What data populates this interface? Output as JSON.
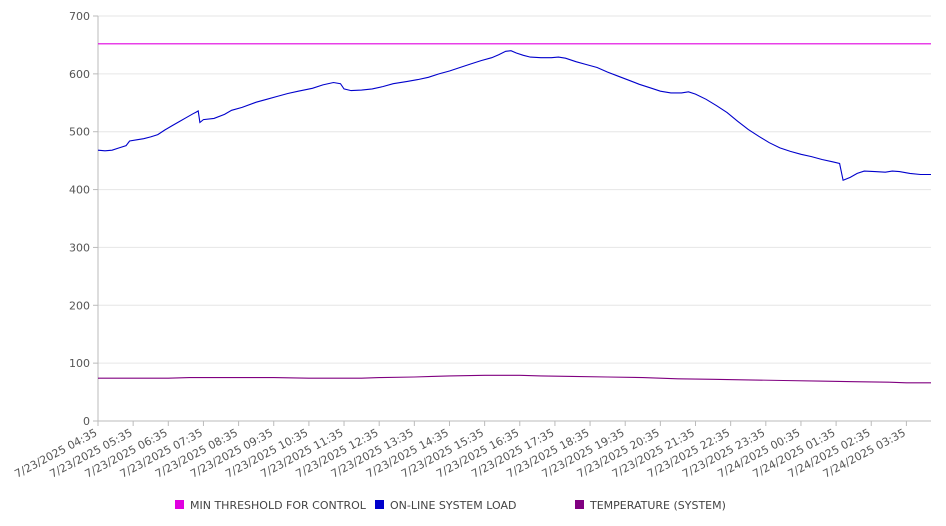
{
  "chart_data": {
    "type": "line",
    "title": "",
    "xlabel": "",
    "ylabel": "",
    "ylim": [
      0,
      700
    ],
    "yticks": [
      0,
      100,
      200,
      300,
      400,
      500,
      600,
      700
    ],
    "grid": "horizontal",
    "legend_position": "bottom",
    "categories": [
      "7/23/2025 04:35",
      "7/23/2025 05:35",
      "7/23/2025 06:35",
      "7/23/2025 07:35",
      "7/23/2025 08:35",
      "7/23/2025 09:35",
      "7/23/2025 10:35",
      "7/23/2025 11:35",
      "7/23/2025 12:35",
      "7/23/2025 13:35",
      "7/23/2025 14:35",
      "7/23/2025 15:35",
      "7/23/2025 16:35",
      "7/23/2025 17:35",
      "7/23/2025 18:35",
      "7/23/2025 19:35",
      "7/23/2025 20:35",
      "7/23/2025 21:35",
      "7/23/2025 22:35",
      "7/23/2025 23:35",
      "7/24/2025 00:35",
      "7/24/2025 01:35",
      "7/24/2025 02:35",
      "7/24/2025 03:35"
    ],
    "series": [
      {
        "name": "MIN THRESHOLD FOR CONTROL",
        "color": "#e000e0",
        "points": [
          [
            0,
            652
          ],
          [
            23.7,
            652
          ]
        ]
      },
      {
        "name": "ON-LINE SYSTEM LOAD",
        "color": "#0000cc",
        "points": [
          [
            0,
            468
          ],
          [
            0.2,
            467
          ],
          [
            0.4,
            468
          ],
          [
            0.6,
            472
          ],
          [
            0.8,
            476
          ],
          [
            0.9,
            484
          ],
          [
            1.1,
            486
          ],
          [
            1.3,
            488
          ],
          [
            1.5,
            491
          ],
          [
            1.7,
            495
          ],
          [
            1.9,
            503
          ],
          [
            2.1,
            510
          ],
          [
            2.3,
            517
          ],
          [
            2.5,
            524
          ],
          [
            2.7,
            531
          ],
          [
            2.8,
            534
          ],
          [
            2.85,
            536
          ],
          [
            2.9,
            516
          ],
          [
            3.0,
            521
          ],
          [
            3.3,
            523
          ],
          [
            3.6,
            530
          ],
          [
            3.8,
            537
          ],
          [
            4.1,
            542
          ],
          [
            4.5,
            551
          ],
          [
            4.8,
            556
          ],
          [
            5.1,
            561
          ],
          [
            5.4,
            566
          ],
          [
            5.7,
            570
          ],
          [
            6.1,
            575
          ],
          [
            6.4,
            581
          ],
          [
            6.7,
            585
          ],
          [
            6.9,
            583
          ],
          [
            7.0,
            574
          ],
          [
            7.2,
            571
          ],
          [
            7.5,
            572
          ],
          [
            7.8,
            574
          ],
          [
            8.1,
            578
          ],
          [
            8.4,
            583
          ],
          [
            8.8,
            587
          ],
          [
            9.1,
            590
          ],
          [
            9.4,
            594
          ],
          [
            9.7,
            600
          ],
          [
            10.0,
            605
          ],
          [
            10.3,
            611
          ],
          [
            10.6,
            617
          ],
          [
            10.9,
            623
          ],
          [
            11.2,
            628
          ],
          [
            11.4,
            633
          ],
          [
            11.6,
            639
          ],
          [
            11.75,
            640
          ],
          [
            11.9,
            636
          ],
          [
            12.1,
            632
          ],
          [
            12.3,
            629
          ],
          [
            12.6,
            628
          ],
          [
            12.9,
            628
          ],
          [
            13.1,
            629
          ],
          [
            13.3,
            627
          ],
          [
            13.6,
            621
          ],
          [
            13.9,
            616
          ],
          [
            14.2,
            611
          ],
          [
            14.5,
            603
          ],
          [
            14.8,
            596
          ],
          [
            15.1,
            589
          ],
          [
            15.4,
            582
          ],
          [
            15.7,
            576
          ],
          [
            16.0,
            570
          ],
          [
            16.3,
            567
          ],
          [
            16.6,
            567
          ],
          [
            16.8,
            569
          ],
          [
            17.0,
            565
          ],
          [
            17.3,
            556
          ],
          [
            17.6,
            545
          ],
          [
            17.9,
            533
          ],
          [
            18.2,
            518
          ],
          [
            18.5,
            504
          ],
          [
            18.8,
            492
          ],
          [
            19.1,
            481
          ],
          [
            19.4,
            472
          ],
          [
            19.7,
            466
          ],
          [
            20.0,
            461
          ],
          [
            20.3,
            457
          ],
          [
            20.6,
            452
          ],
          [
            20.9,
            448
          ],
          [
            21.1,
            445
          ],
          [
            21.2,
            416
          ],
          [
            21.4,
            421
          ],
          [
            21.6,
            428
          ],
          [
            21.8,
            432
          ],
          [
            22.1,
            431
          ],
          [
            22.4,
            430
          ],
          [
            22.6,
            432
          ],
          [
            22.8,
            431
          ],
          [
            23.1,
            428
          ],
          [
            23.4,
            426
          ],
          [
            23.7,
            426
          ]
        ]
      },
      {
        "name": "TEMPERATURE (SYSTEM)",
        "color": "#800080",
        "points": [
          [
            0,
            74
          ],
          [
            2,
            74
          ],
          [
            2.6,
            75
          ],
          [
            5,
            75
          ],
          [
            6,
            74
          ],
          [
            7.5,
            74
          ],
          [
            8,
            75
          ],
          [
            9,
            76
          ],
          [
            9.5,
            77
          ],
          [
            10,
            78
          ],
          [
            11,
            79
          ],
          [
            12,
            79
          ],
          [
            12.6,
            78
          ],
          [
            13.5,
            77
          ],
          [
            14.5,
            76
          ],
          [
            15.5,
            75
          ],
          [
            16.5,
            73
          ],
          [
            17.5,
            72
          ],
          [
            18.5,
            71
          ],
          [
            19.5,
            70
          ],
          [
            20.5,
            69
          ],
          [
            21.5,
            68
          ],
          [
            22.5,
            67
          ],
          [
            23,
            66
          ],
          [
            23.7,
            66
          ]
        ]
      }
    ]
  }
}
